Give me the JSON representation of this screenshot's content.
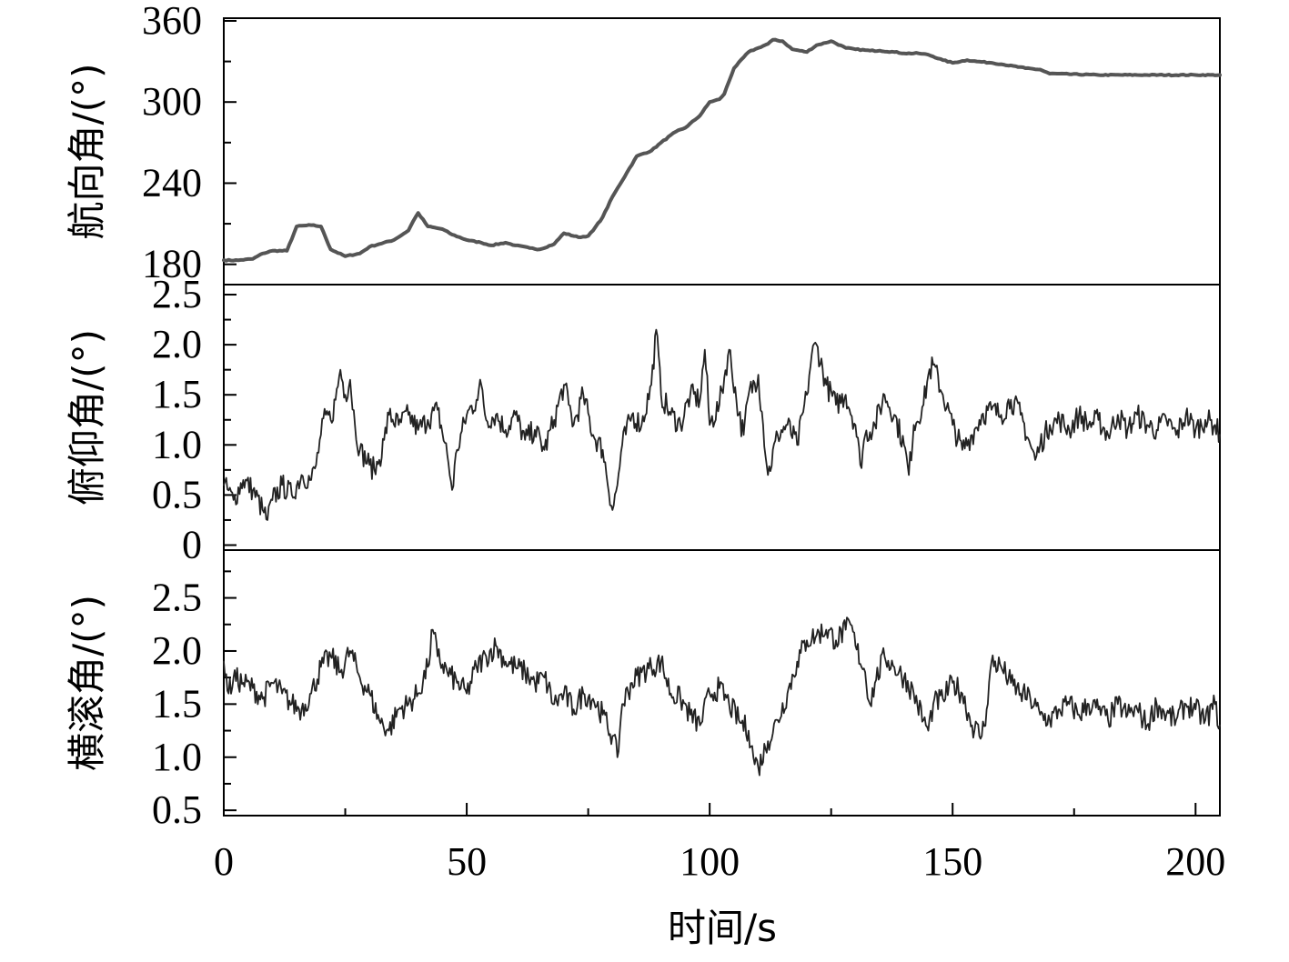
{
  "chart_data": {
    "type": "line",
    "layout": "three stacked panels sharing one x-axis",
    "grid": false,
    "xlabel": "时间/s",
    "xlim": [
      0,
      205
    ],
    "x_ticks": [
      0,
      50,
      100,
      150,
      200
    ],
    "x_tick_labels": [
      "0",
      "50",
      "100",
      "150",
      "200"
    ],
    "panels": [
      {
        "id": "heading",
        "ylabel": "航向角/(°)",
        "ylim": [
          165,
          362
        ],
        "y_ticks": [
          180,
          240,
          300,
          360
        ],
        "y_tick_labels": [
          "180",
          "240",
          "300",
          "360"
        ],
        "color": "#555555",
        "series": [
          {
            "x": [
              0,
              3,
              6,
              8,
              10,
              13,
              15,
              18,
              20,
              22,
              25,
              28,
              30,
              32,
              35,
              38,
              39,
              40,
              42,
              45,
              47,
              50,
              53,
              55,
              58,
              60,
              63,
              65,
              68,
              70,
              73,
              75,
              76,
              78,
              80,
              83,
              85,
              88,
              90,
              93,
              95,
              98,
              100,
              102,
              103,
              105,
              108,
              110,
              112,
              113,
              115,
              117,
              120,
              122,
              125,
              128,
              130,
              133,
              135,
              138,
              140,
              143,
              145,
              148,
              150,
              153,
              155,
              158,
              160,
              165,
              168,
              170,
              180,
              190,
              200,
              205
            ],
            "y": [
              183,
              183,
              184,
              188,
              190,
              190,
              208,
              209,
              208,
              191,
              186,
              188,
              193,
              195,
              198,
              205,
              212,
              218,
              208,
              206,
              202,
              198,
              196,
              194,
              196,
              194,
              192,
              191,
              195,
              203,
              200,
              201,
              205,
              215,
              230,
              248,
              260,
              264,
              270,
              278,
              281,
              290,
              300,
              302,
              306,
              325,
              337,
              340,
              343,
              346,
              345,
              339,
              337,
              342,
              345,
              340,
              339,
              338,
              338,
              337,
              336,
              336,
              335,
              331,
              329,
              331,
              330,
              329,
              328,
              325,
              324,
              321,
              320,
              320,
              320,
              320
            ]
          }
        ]
      },
      {
        "id": "pitch",
        "ylabel": "俯仰角/(°)",
        "ylim": [
          -0.05,
          2.6
        ],
        "y_ticks": [
          0,
          0.5,
          1.0,
          1.5,
          2.0,
          2.5
        ],
        "y_tick_labels": [
          "0",
          "0.5",
          "1.0",
          "1.5",
          "2.0",
          "2.5"
        ],
        "color": "#222222",
        "series": [
          {
            "x": [
              0,
              2,
              4,
              6,
              8,
              9,
              10,
              12,
              14,
              16,
              18,
              19,
              20,
              21,
              22,
              23,
              24,
              25,
              26,
              27,
              28,
              30,
              31,
              32,
              33,
              34,
              36,
              38,
              40,
              42,
              44,
              46,
              47,
              48,
              50,
              52,
              53,
              54,
              56,
              58,
              60,
              62,
              64,
              66,
              68,
              70,
              71,
              72,
              74,
              76,
              78,
              80,
              81,
              82,
              84,
              86,
              88,
              89,
              90,
              92,
              94,
              96,
              98,
              99,
              100,
              102,
              104,
              106,
              107,
              108,
              110,
              111,
              112,
              114,
              116,
              118,
              120,
              121,
              122,
              124,
              126,
              128,
              130,
              131,
              132,
              134,
              136,
              138,
              140,
              141,
              142,
              144,
              145,
              146,
              148,
              150,
              152,
              154,
              156,
              158,
              160,
              162,
              164,
              166,
              167,
              168,
              170,
              172,
              174,
              176,
              178,
              180,
              182,
              184,
              186,
              188,
              190,
              192,
              194,
              196,
              198,
              200,
              202,
              204,
              205
            ],
            "y": [
              0.6,
              0.45,
              0.65,
              0.55,
              0.35,
              0.25,
              0.45,
              0.6,
              0.5,
              0.7,
              0.65,
              0.8,
              1.1,
              1.3,
              1.25,
              1.45,
              1.75,
              1.5,
              1.65,
              1.2,
              0.95,
              0.8,
              0.75,
              0.85,
              1.05,
              1.3,
              1.2,
              1.3,
              1.15,
              1.25,
              1.35,
              0.9,
              0.55,
              0.95,
              1.3,
              1.45,
              1.6,
              1.25,
              1.3,
              1.15,
              1.3,
              1.05,
              1.15,
              0.95,
              1.25,
              1.6,
              1.4,
              1.2,
              1.5,
              1.1,
              0.95,
              0.35,
              0.6,
              1.0,
              1.3,
              1.2,
              1.6,
              2.15,
              1.5,
              1.3,
              1.2,
              1.5,
              1.45,
              1.95,
              1.2,
              1.4,
              1.95,
              1.3,
              1.1,
              1.5,
              1.7,
              1.2,
              0.7,
              1.1,
              1.2,
              1.0,
              1.5,
              1.9,
              2.0,
              1.6,
              1.4,
              1.5,
              1.2,
              0.8,
              1.1,
              1.2,
              1.5,
              1.3,
              1.0,
              0.7,
              1.2,
              1.4,
              1.7,
              1.8,
              1.5,
              1.2,
              0.95,
              1.1,
              1.3,
              1.35,
              1.3,
              1.45,
              1.3,
              1.0,
              0.85,
              1.0,
              1.2,
              1.25,
              1.15,
              1.3,
              1.2,
              1.25,
              1.1,
              1.3,
              1.15,
              1.3,
              1.2,
              1.15,
              1.25,
              1.1,
              1.3,
              1.15,
              1.25,
              1.2,
              1.1
            ]
          }
        ]
      },
      {
        "id": "roll",
        "ylabel": "横滚角/(°)",
        "ylim": [
          0.45,
          2.95
        ],
        "y_ticks": [
          0.5,
          1.0,
          1.5,
          2.0,
          2.5
        ],
        "y_tick_labels": [
          "0.5",
          "1.0",
          "1.5",
          "2.0",
          "2.5"
        ],
        "color": "#222222",
        "series": [
          {
            "x": [
              0,
              1,
              2,
              4,
              6,
              8,
              10,
              12,
              14,
              16,
              18,
              20,
              22,
              24,
              26,
              28,
              30,
              32,
              34,
              36,
              38,
              40,
              42,
              43,
              44,
              46,
              48,
              50,
              52,
              54,
              56,
              58,
              60,
              62,
              64,
              66,
              68,
              70,
              72,
              74,
              76,
              78,
              80,
              81,
              82,
              84,
              86,
              88,
              90,
              92,
              94,
              96,
              98,
              100,
              102,
              104,
              106,
              108,
              109,
              110,
              112,
              114,
              116,
              118,
              120,
              122,
              124,
              126,
              128,
              129,
              130,
              132,
              133,
              134,
              136,
              138,
              140,
              142,
              144,
              145,
              146,
              148,
              150,
              152,
              154,
              156,
              157,
              158,
              160,
              162,
              164,
              166,
              168,
              170,
              172,
              174,
              176,
              178,
              180,
              182,
              184,
              186,
              188,
              190,
              192,
              194,
              196,
              198,
              200,
              202,
              204,
              205
            ],
            "y": [
              1.9,
              1.6,
              1.75,
              1.7,
              1.65,
              1.55,
              1.7,
              1.6,
              1.5,
              1.45,
              1.6,
              1.85,
              1.95,
              1.8,
              2.0,
              1.75,
              1.6,
              1.35,
              1.25,
              1.45,
              1.5,
              1.6,
              1.85,
              2.2,
              1.95,
              1.8,
              1.7,
              1.6,
              1.85,
              1.95,
              2.05,
              1.9,
              1.85,
              1.8,
              1.7,
              1.75,
              1.5,
              1.6,
              1.45,
              1.6,
              1.55,
              1.4,
              1.2,
              1.0,
              1.5,
              1.7,
              1.8,
              1.85,
              1.9,
              1.6,
              1.55,
              1.4,
              1.3,
              1.6,
              1.65,
              1.5,
              1.35,
              1.25,
              1.0,
              0.9,
              1.15,
              1.35,
              1.6,
              1.9,
              2.1,
              2.15,
              2.2,
              2.1,
              2.2,
              2.25,
              2.05,
              1.8,
              1.5,
              1.7,
              1.95,
              1.85,
              1.75,
              1.6,
              1.35,
              1.25,
              1.5,
              1.55,
              1.7,
              1.6,
              1.3,
              1.2,
              1.45,
              1.9,
              1.85,
              1.7,
              1.6,
              1.55,
              1.4,
              1.35,
              1.45,
              1.5,
              1.4,
              1.5,
              1.45,
              1.35,
              1.5,
              1.4,
              1.45,
              1.3,
              1.5,
              1.4,
              1.35,
              1.5,
              1.45,
              1.35,
              1.5,
              1.3
            ]
          }
        ]
      }
    ]
  }
}
